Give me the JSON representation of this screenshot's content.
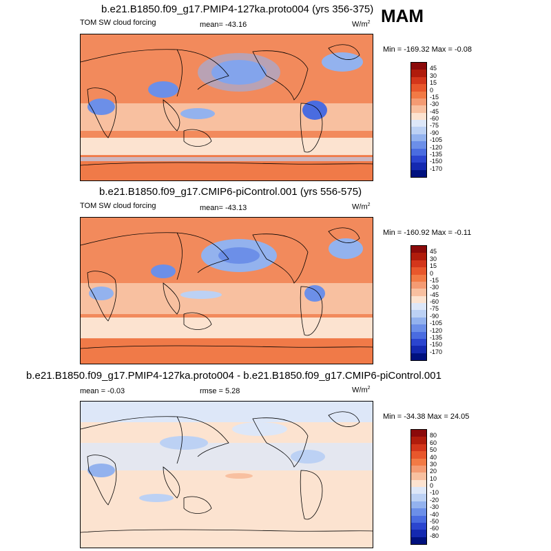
{
  "season": "MAM",
  "panels": [
    {
      "title": "b.e21.B1850.f09_g17.PMIP4-127ka.proto004 (yrs 356-375)",
      "left_label": "TOM SW cloud forcing",
      "center_label": "mean= -43.16",
      "unit": "W/m",
      "unit_exp": "2",
      "minmax": "Min = -169.32 Max =  -0.08",
      "colorbar_labels": [
        "45",
        "30",
        "15",
        "0",
        "-15",
        "-30",
        "-45",
        "-60",
        "-75",
        "-90",
        "-105",
        "-120",
        "-135",
        "-150",
        "-170"
      ],
      "colorbar_colors": [
        "#8b0a0a",
        "#b01c0c",
        "#d3361b",
        "#e8572c",
        "#f27a45",
        "#f49b73",
        "#f8c0a0",
        "#fce3d0",
        "#dde7f8",
        "#bcd1f4",
        "#93b2ee",
        "#6c8fe8",
        "#4a6ce0",
        "#2b45cf",
        "#1429b0",
        "#00117e"
      ]
    },
    {
      "title": "b.e21.B1850.f09_g17.CMIP6-piControl.001 (yrs 556-575)",
      "left_label": "TOM SW cloud forcing",
      "center_label": "mean= -43.13",
      "unit": "W/m",
      "unit_exp": "2",
      "minmax": "Min = -160.92 Max =  -0.11",
      "colorbar_labels": [
        "45",
        "30",
        "15",
        "0",
        "-15",
        "-30",
        "-45",
        "-60",
        "-75",
        "-90",
        "-105",
        "-120",
        "-135",
        "-150",
        "-170"
      ],
      "colorbar_colors": [
        "#8b0a0a",
        "#b01c0c",
        "#d3361b",
        "#e8572c",
        "#f27a45",
        "#f49b73",
        "#f8c0a0",
        "#fce3d0",
        "#dde7f8",
        "#bcd1f4",
        "#93b2ee",
        "#6c8fe8",
        "#4a6ce0",
        "#2b45cf",
        "#1429b0",
        "#00117e"
      ]
    },
    {
      "title": "b.e21.B1850.f09_g17.PMIP4-127ka.proto004 - b.e21.B1850.f09_g17.CMIP6-piControl.001",
      "left_label": "mean =  -0.03",
      "center_label": "rmse =   5.28",
      "unit": "W/m",
      "unit_exp": "2",
      "minmax": "Min = -34.38 Max =  24.05",
      "colorbar_labels": [
        "80",
        "60",
        "50",
        "40",
        "30",
        "20",
        "10",
        "0",
        "-10",
        "-20",
        "-30",
        "-40",
        "-50",
        "-60",
        "-80"
      ],
      "colorbar_colors": [
        "#8b0a0a",
        "#b01c0c",
        "#d3361b",
        "#e8572c",
        "#f27a45",
        "#f49b73",
        "#f8c0a0",
        "#fce3d0",
        "#dde7f8",
        "#bcd1f4",
        "#93b2ee",
        "#6c8fe8",
        "#4a6ce0",
        "#2b45cf",
        "#1429b0",
        "#00117e"
      ]
    }
  ]
}
